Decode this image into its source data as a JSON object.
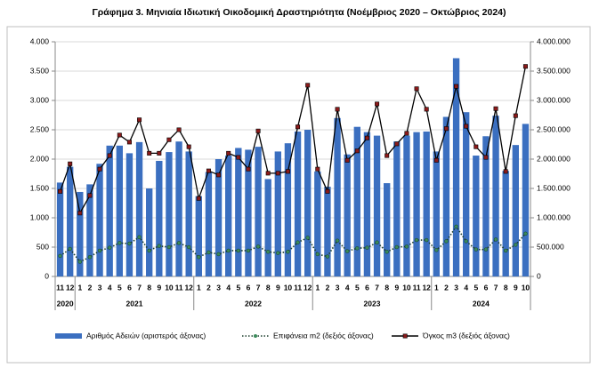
{
  "chart_data": {
    "type": "combo",
    "title": "Γράφημα 3. Μηνιαία Ιδιωτική Οικοδομική Δραστηριότητα (Νοέμβριος 2020 – Οκτώβριος 2024)",
    "categories": [
      "11",
      "12",
      "1",
      "2",
      "3",
      "4",
      "5",
      "6",
      "7",
      "8",
      "9",
      "10",
      "11",
      "12",
      "1",
      "2",
      "3",
      "4",
      "5",
      "6",
      "7",
      "8",
      "9",
      "10",
      "11",
      "12",
      "1",
      "2",
      "3",
      "4",
      "5",
      "6",
      "7",
      "8",
      "9",
      "10",
      "11",
      "12",
      "1",
      "2",
      "3",
      "4",
      "5",
      "6",
      "7",
      "8",
      "9",
      "10"
    ],
    "years": [
      "2020",
      "2020",
      "2021",
      "2021",
      "2021",
      "2021",
      "2021",
      "2021",
      "2021",
      "2021",
      "2021",
      "2021",
      "2021",
      "2021",
      "2022",
      "2022",
      "2022",
      "2022",
      "2022",
      "2022",
      "2022",
      "2022",
      "2022",
      "2022",
      "2022",
      "2022",
      "2023",
      "2023",
      "2023",
      "2023",
      "2023",
      "2023",
      "2023",
      "2023",
      "2023",
      "2023",
      "2023",
      "2023",
      "2024",
      "2024",
      "2024",
      "2024",
      "2024",
      "2024",
      "2024",
      "2024",
      "2024",
      "2024"
    ],
    "ylim": [
      0,
      4000
    ],
    "yticks": [
      0,
      500,
      {
        "value": 1000,
        "label": "1.000"
      },
      {
        "value": 1500,
        "label": "1.500"
      },
      {
        "value": 2000,
        "label": "2.000"
      },
      {
        "value": 2500,
        "label": "2.500"
      },
      {
        "value": 3000,
        "label": "3.000"
      },
      {
        "value": 3500,
        "label": "3.500"
      },
      {
        "value": 4000,
        "label": "4.000"
      }
    ],
    "y2lim": [
      0,
      4000000
    ],
    "y2ticks": [
      0,
      {
        "value": 500000,
        "label": "500.000"
      },
      {
        "value": 1000000,
        "label": "1.000.000"
      },
      {
        "value": 1500000,
        "label": "1.500.000"
      },
      {
        "value": 2000000,
        "label": "2.000.000"
      },
      {
        "value": 2500000,
        "label": "2.500.000"
      },
      {
        "value": 3000000,
        "label": "3.000.000"
      },
      {
        "value": 3500000,
        "label": "3.500.000"
      },
      {
        "value": 4000000,
        "label": "4.000.000"
      }
    ],
    "grid": true,
    "legend": "bottom",
    "series": [
      {
        "name": "Αριθμός Αδειών (αριστερός άξονας)",
        "type": "bar",
        "color": "#3b6fc0",
        "values": [
          1600,
          1870,
          1440,
          1570,
          1920,
          2230,
          2230,
          2100,
          2290,
          1500,
          1970,
          2120,
          2300,
          2130,
          1370,
          1780,
          2000,
          2060,
          2190,
          2160,
          2210,
          1660,
          2130,
          2270,
          2470,
          2500,
          1790,
          1530,
          2700,
          2080,
          2550,
          2460,
          2400,
          1590,
          2300,
          2400,
          2460,
          2470,
          2130,
          2720,
          3720,
          2800,
          2060,
          2390,
          2740,
          1800,
          2240,
          2600
        ]
      },
      {
        "name": "Επιφάνεια m2 (δεξιός άξονας)",
        "type": "line",
        "axis": "y2",
        "color": "#1a3d2b",
        "marker_color": "#3a8a5a",
        "dash": "dotted",
        "values": [
          350000,
          470000,
          250000,
          330000,
          440000,
          490000,
          570000,
          560000,
          670000,
          440000,
          520000,
          500000,
          570000,
          500000,
          330000,
          410000,
          380000,
          440000,
          440000,
          440000,
          510000,
          420000,
          400000,
          420000,
          580000,
          660000,
          380000,
          340000,
          610000,
          430000,
          480000,
          490000,
          580000,
          420000,
          500000,
          510000,
          620000,
          620000,
          450000,
          600000,
          850000,
          600000,
          460000,
          460000,
          630000,
          440000,
          540000,
          730000
        ]
      },
      {
        "name": "Όγκος m3 (δεξιός άξονας)",
        "type": "line",
        "axis": "y2",
        "color": "#000000",
        "marker_color": "#8b1a1a",
        "dash": "solid",
        "values": [
          1450000,
          1920000,
          1080000,
          1380000,
          1830000,
          2060000,
          2410000,
          2290000,
          2670000,
          2100000,
          2100000,
          2330000,
          2500000,
          2210000,
          1330000,
          1800000,
          1730000,
          2100000,
          2030000,
          1830000,
          2480000,
          1760000,
          1760000,
          1790000,
          2550000,
          3260000,
          1830000,
          1450000,
          2850000,
          1980000,
          2140000,
          2360000,
          2940000,
          2060000,
          2260000,
          2440000,
          3200000,
          2850000,
          1980000,
          2520000,
          3240000,
          2560000,
          2210000,
          2030000,
          2860000,
          1790000,
          2740000,
          3580000
        ]
      }
    ]
  }
}
